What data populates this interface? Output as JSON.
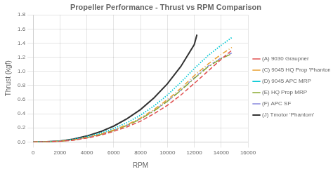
{
  "chart_data": {
    "type": "line",
    "title": "Propeller Performance - Thrust vs RPM Comparison",
    "xlabel": "RPM",
    "ylabel": "Thrust (kgf)",
    "xlim": [
      0,
      16000
    ],
    "ylim": [
      0,
      1.8
    ],
    "xticks": [
      0,
      2000,
      4000,
      6000,
      8000,
      10000,
      12000,
      14000,
      16000
    ],
    "yticks": [
      {
        "value": 0,
        "label": "0.0"
      },
      0.2,
      0.4,
      0.6,
      0.8,
      {
        "value": 1.0,
        "label": "1.0"
      },
      1.2,
      1.4,
      1.6,
      1.8
    ],
    "grid": true,
    "legend": "right",
    "series": [
      {
        "name": "(A) 9030 Graupner",
        "color": "#e05050",
        "line_style": "dashed",
        "x": [
          0,
          1000,
          2000,
          3000,
          4000,
          5000,
          6000,
          7000,
          8000,
          9000,
          10000,
          11000,
          12000,
          13000,
          14000,
          14800
        ],
        "values": [
          0,
          0.002,
          0.01,
          0.025,
          0.055,
          0.095,
          0.15,
          0.215,
          0.295,
          0.4,
          0.52,
          0.665,
          0.83,
          1.0,
          1.17,
          1.3
        ]
      },
      {
        "name": "(C) 9045 HQ Prop 'Phantom'",
        "color": "#e8a030",
        "line_style": "dashdot",
        "x": [
          0,
          1000,
          2000,
          3000,
          4000,
          5000,
          6000,
          7000,
          8000,
          9000,
          10000,
          11000,
          12000,
          13000,
          14000,
          14800
        ],
        "values": [
          0,
          0.002,
          0.012,
          0.03,
          0.065,
          0.11,
          0.17,
          0.245,
          0.34,
          0.46,
          0.6,
          0.76,
          0.94,
          1.1,
          1.24,
          1.34
        ]
      },
      {
        "name": "(D) 9045 APC MRP",
        "color": "#00c8d4",
        "line_style": "dotted",
        "x": [
          0,
          1000,
          2000,
          3000,
          4000,
          5000,
          6000,
          7000,
          8000,
          9000,
          10000,
          11000,
          12000,
          13000,
          14000,
          14800
        ],
        "values": [
          0,
          0.003,
          0.015,
          0.038,
          0.075,
          0.125,
          0.19,
          0.275,
          0.38,
          0.51,
          0.665,
          0.845,
          1.04,
          1.22,
          1.37,
          1.48
        ]
      },
      {
        "name": "(E) HQ Prop MRP",
        "color": "#8aaa30",
        "line_style": "long_dashdot",
        "x": [
          0,
          1000,
          2000,
          3000,
          4000,
          5000,
          6000,
          7000,
          8000,
          9000,
          10000,
          11000,
          12000,
          13000,
          14000,
          14800
        ],
        "values": [
          0,
          0.002,
          0.012,
          0.03,
          0.062,
          0.105,
          0.163,
          0.235,
          0.325,
          0.44,
          0.575,
          0.73,
          0.9,
          1.06,
          1.18,
          1.25
        ]
      },
      {
        "name": "(F) APC SF",
        "color": "#8888dd",
        "line_style": "short_dashdot",
        "x": [
          0,
          1000,
          2000,
          3000,
          4000,
          5000,
          6000,
          7000,
          8000,
          9000,
          10000,
          11000,
          12000,
          13000,
          14000,
          14800
        ],
        "values": [
          0,
          0.002,
          0.012,
          0.03,
          0.063,
          0.107,
          0.165,
          0.238,
          0.33,
          0.445,
          0.58,
          0.735,
          0.91,
          1.07,
          1.19,
          1.26
        ]
      },
      {
        "name": "(J) Tmotor 'Phantom'",
        "color": "#333333",
        "line_style": "solid",
        "x": [
          0,
          1000,
          2000,
          3000,
          4000,
          5000,
          6000,
          7000,
          8000,
          9000,
          10000,
          11000,
          12000,
          12200
        ],
        "values": [
          0,
          0.003,
          0.015,
          0.042,
          0.085,
          0.145,
          0.225,
          0.33,
          0.46,
          0.625,
          0.825,
          1.07,
          1.38,
          1.52
        ]
      }
    ]
  }
}
